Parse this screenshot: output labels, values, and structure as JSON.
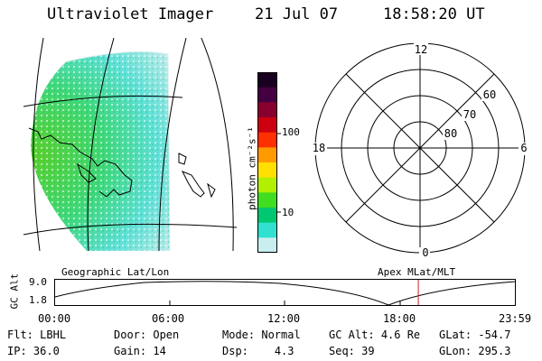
{
  "header": {
    "instrument": "Ultraviolet Imager",
    "date": "21 Jul 07",
    "time": "18:58:20 UT"
  },
  "colorbar": {
    "unit_label": "photon cm⁻²s⁻¹",
    "ticks": [
      "100",
      "10"
    ],
    "colors": [
      "#1a0020",
      "#440040",
      "#880030",
      "#cc0010",
      "#ff3000",
      "#ff9a00",
      "#ffe000",
      "#b0f000",
      "#40dd20",
      "#00c870",
      "#30e0d0",
      "#c8eef0"
    ]
  },
  "polar_plot": {
    "mlt_labels": {
      "top": "12",
      "bottom": "0",
      "left": "18",
      "right": "6"
    },
    "mlat_labels": [
      "60",
      "70",
      "80"
    ]
  },
  "orbit_panel": {
    "left_title": "Geographic Lat/Lon",
    "right_title": "Apex MLat/MLT",
    "ylabel": "GC Alt",
    "ytick_top": "9.0",
    "ytick_bottom": "1.8",
    "time_ticks": [
      "00:00",
      "06:00",
      "12:00",
      "18:00",
      "23:59"
    ],
    "current_time_fraction": 0.79,
    "current_marker_color": "#cc2222"
  },
  "info": {
    "row1": [
      {
        "label": "Flt:",
        "value": "LBHL"
      },
      {
        "label": "Door:",
        "value": "Open"
      },
      {
        "label": "Mode:",
        "value": "Normal"
      },
      {
        "label": "GC Alt:",
        "value": "4.6 Re"
      },
      {
        "label": "GLat:",
        "value": "-54.7"
      }
    ],
    "row2": [
      {
        "label": "IP:",
        "value": "36.0"
      },
      {
        "label": "Gain:",
        "value": "14"
      },
      {
        "label": "Dsp:",
        "value": "4.3"
      },
      {
        "label": "Seq:",
        "value": "39"
      },
      {
        "label": "GLon:",
        "value": "295.3"
      }
    ]
  }
}
